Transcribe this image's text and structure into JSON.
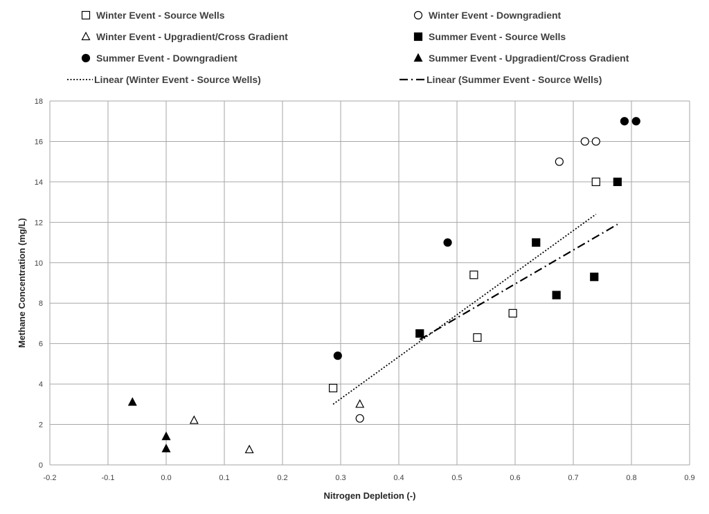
{
  "chart_data": {
    "type": "scatter",
    "xlabel": "Nitrogen Depletion (-)",
    "ylabel": "Methane Concentration (mg/L)",
    "xlim": [
      -0.2,
      0.9
    ],
    "ylim": [
      0,
      18
    ],
    "xticks": [
      "-0.2",
      "-0.1",
      "0.0",
      "0.1",
      "0.2",
      "0.3",
      "0.4",
      "0.5",
      "0.6",
      "0.7",
      "0.8",
      "0.9"
    ],
    "yticks": [
      "0",
      "2",
      "4",
      "6",
      "8",
      "10",
      "12",
      "14",
      "16",
      "18"
    ],
    "grid": true,
    "legend_position": "top",
    "series": [
      {
        "name": "Winter Event - Source Wells",
        "marker": "square-open",
        "points": [
          [
            0.287,
            3.8
          ],
          [
            0.529,
            9.4
          ],
          [
            0.535,
            6.3
          ],
          [
            0.596,
            7.5
          ],
          [
            0.739,
            14.0
          ]
        ]
      },
      {
        "name": "Winter Event - Downgradient",
        "marker": "circle-open",
        "points": [
          [
            0.333,
            2.3
          ],
          [
            0.676,
            15.0
          ],
          [
            0.72,
            16.0
          ],
          [
            0.739,
            16.0
          ]
        ]
      },
      {
        "name": "Winter Event - Upgradient/Cross Gradient",
        "marker": "triangle-open",
        "points": [
          [
            0.048,
            2.2
          ],
          [
            0.143,
            0.75
          ],
          [
            0.333,
            3.0
          ]
        ]
      },
      {
        "name": "Summer Event - Source Wells",
        "marker": "square-filled",
        "points": [
          [
            0.436,
            6.5
          ],
          [
            0.636,
            11.0
          ],
          [
            0.671,
            8.4
          ],
          [
            0.736,
            9.3
          ],
          [
            0.776,
            14.0
          ]
        ]
      },
      {
        "name": "Summer Event - Downgradient",
        "marker": "circle-filled",
        "points": [
          [
            0.295,
            5.4
          ],
          [
            0.484,
            11.0
          ],
          [
            0.788,
            17.0
          ],
          [
            0.808,
            17.0
          ]
        ]
      },
      {
        "name": "Summer Event - Upgradient/Cross Gradient",
        "marker": "triangle-filled",
        "points": [
          [
            -0.058,
            3.1
          ],
          [
            0.0,
            1.4
          ],
          [
            0.0,
            0.8
          ]
        ]
      }
    ],
    "trendlines": [
      {
        "name": "Linear (Winter Event - Source Wells)",
        "style": "dotted",
        "x": [
          0.287,
          0.739
        ],
        "y": [
          3.0,
          12.4
        ]
      },
      {
        "name": "Linear (Summer Event - Source Wells)",
        "style": "dash-dot",
        "x": [
          0.436,
          0.776
        ],
        "y": [
          6.2,
          11.9
        ]
      }
    ],
    "colors": {
      "marker": "#000000",
      "grid": "#a6a6a6",
      "text": "#404040"
    }
  }
}
